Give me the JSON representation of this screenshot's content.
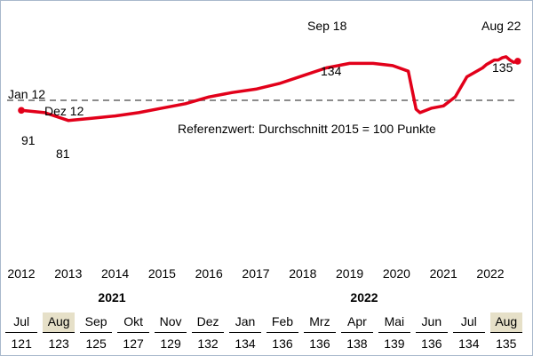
{
  "chart_data": {
    "type": "line",
    "x_ticks": [
      "2012",
      "2013",
      "2014",
      "2015",
      "2016",
      "2017",
      "2018",
      "2019",
      "2020",
      "2021",
      "2022"
    ],
    "reference_label": "Referenzwert: Durchschnitt 2015 = 100 Punkte",
    "reference_value": 100,
    "ylim": [
      70,
      145
    ],
    "series": [
      {
        "color": "#e2001a",
        "x": [
          "2012-01",
          "2012-07",
          "2013-01",
          "2013-07",
          "2014-01",
          "2014-07",
          "2015-01",
          "2015-07",
          "2016-01",
          "2016-07",
          "2017-01",
          "2017-07",
          "2018-01",
          "2018-07",
          "2019-01",
          "2019-07",
          "2019-12",
          "2020-04",
          "2020-06",
          "2020-07",
          "2020-10",
          "2021-01",
          "2021-04",
          "2021-07",
          "2021-08",
          "2021-09",
          "2021-10",
          "2021-11",
          "2021-12",
          "2022-01",
          "2022-02",
          "2022-03",
          "2022-04",
          "2022-05",
          "2022-06",
          "2022-07",
          "2022-08"
        ],
        "values": [
          91,
          89,
          82,
          84,
          86,
          89,
          93,
          97,
          103,
          107,
          110,
          115,
          122,
          129,
          133,
          133,
          131,
          126,
          92,
          89,
          93,
          95,
          103,
          121,
          123,
          125,
          127,
          129,
          132,
          134,
          136,
          136,
          138,
          139,
          136,
          134,
          135
        ]
      }
    ],
    "annotations": [
      {
        "label": "Jan 12",
        "value": "91"
      },
      {
        "label": "Dez 12",
        "value": "81"
      },
      {
        "label": "Sep 18",
        "value": "134"
      },
      {
        "label": "Aug 22",
        "value": "135"
      }
    ]
  },
  "table": {
    "years": [
      "2021",
      "2022"
    ],
    "months": [
      "Jul",
      "Aug",
      "Sep",
      "Okt",
      "Nov",
      "Dez",
      "Jan",
      "Feb",
      "Mrz",
      "Apr",
      "Mai",
      "Jun",
      "Jul",
      "Aug"
    ],
    "values": [
      "121",
      "123",
      "125",
      "127",
      "129",
      "132",
      "134",
      "136",
      "136",
      "138",
      "139",
      "136",
      "134",
      "135"
    ],
    "highlighted_months": [
      "Aug"
    ]
  }
}
